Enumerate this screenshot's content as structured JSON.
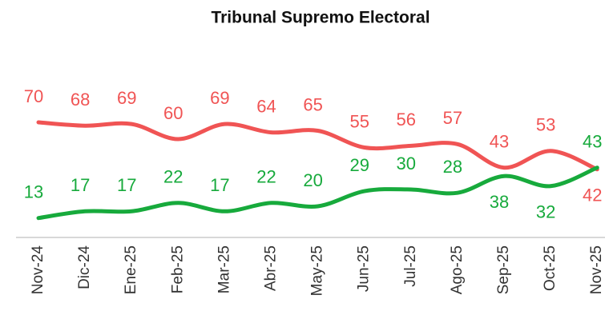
{
  "chart_data": {
    "type": "line",
    "title": "Tribunal Supremo Electoral",
    "categories": [
      "Nov-24",
      "Dic-24",
      "Ene-25",
      "Feb-25",
      "Mar-25",
      "Abr-25",
      "May-25",
      "Jun-25",
      "Jul-25",
      "Ago-25",
      "Sep-25",
      "Oct-25",
      "Nov-25"
    ],
    "series": [
      {
        "color": "#f05454",
        "values": [
          70,
          68,
          69,
          60,
          69,
          64,
          65,
          55,
          56,
          57,
          43,
          53,
          42
        ]
      },
      {
        "color": "#17aa3c",
        "values": [
          13,
          17,
          17,
          22,
          17,
          22,
          20,
          29,
          30,
          28,
          38,
          32,
          43
        ]
      }
    ]
  }
}
